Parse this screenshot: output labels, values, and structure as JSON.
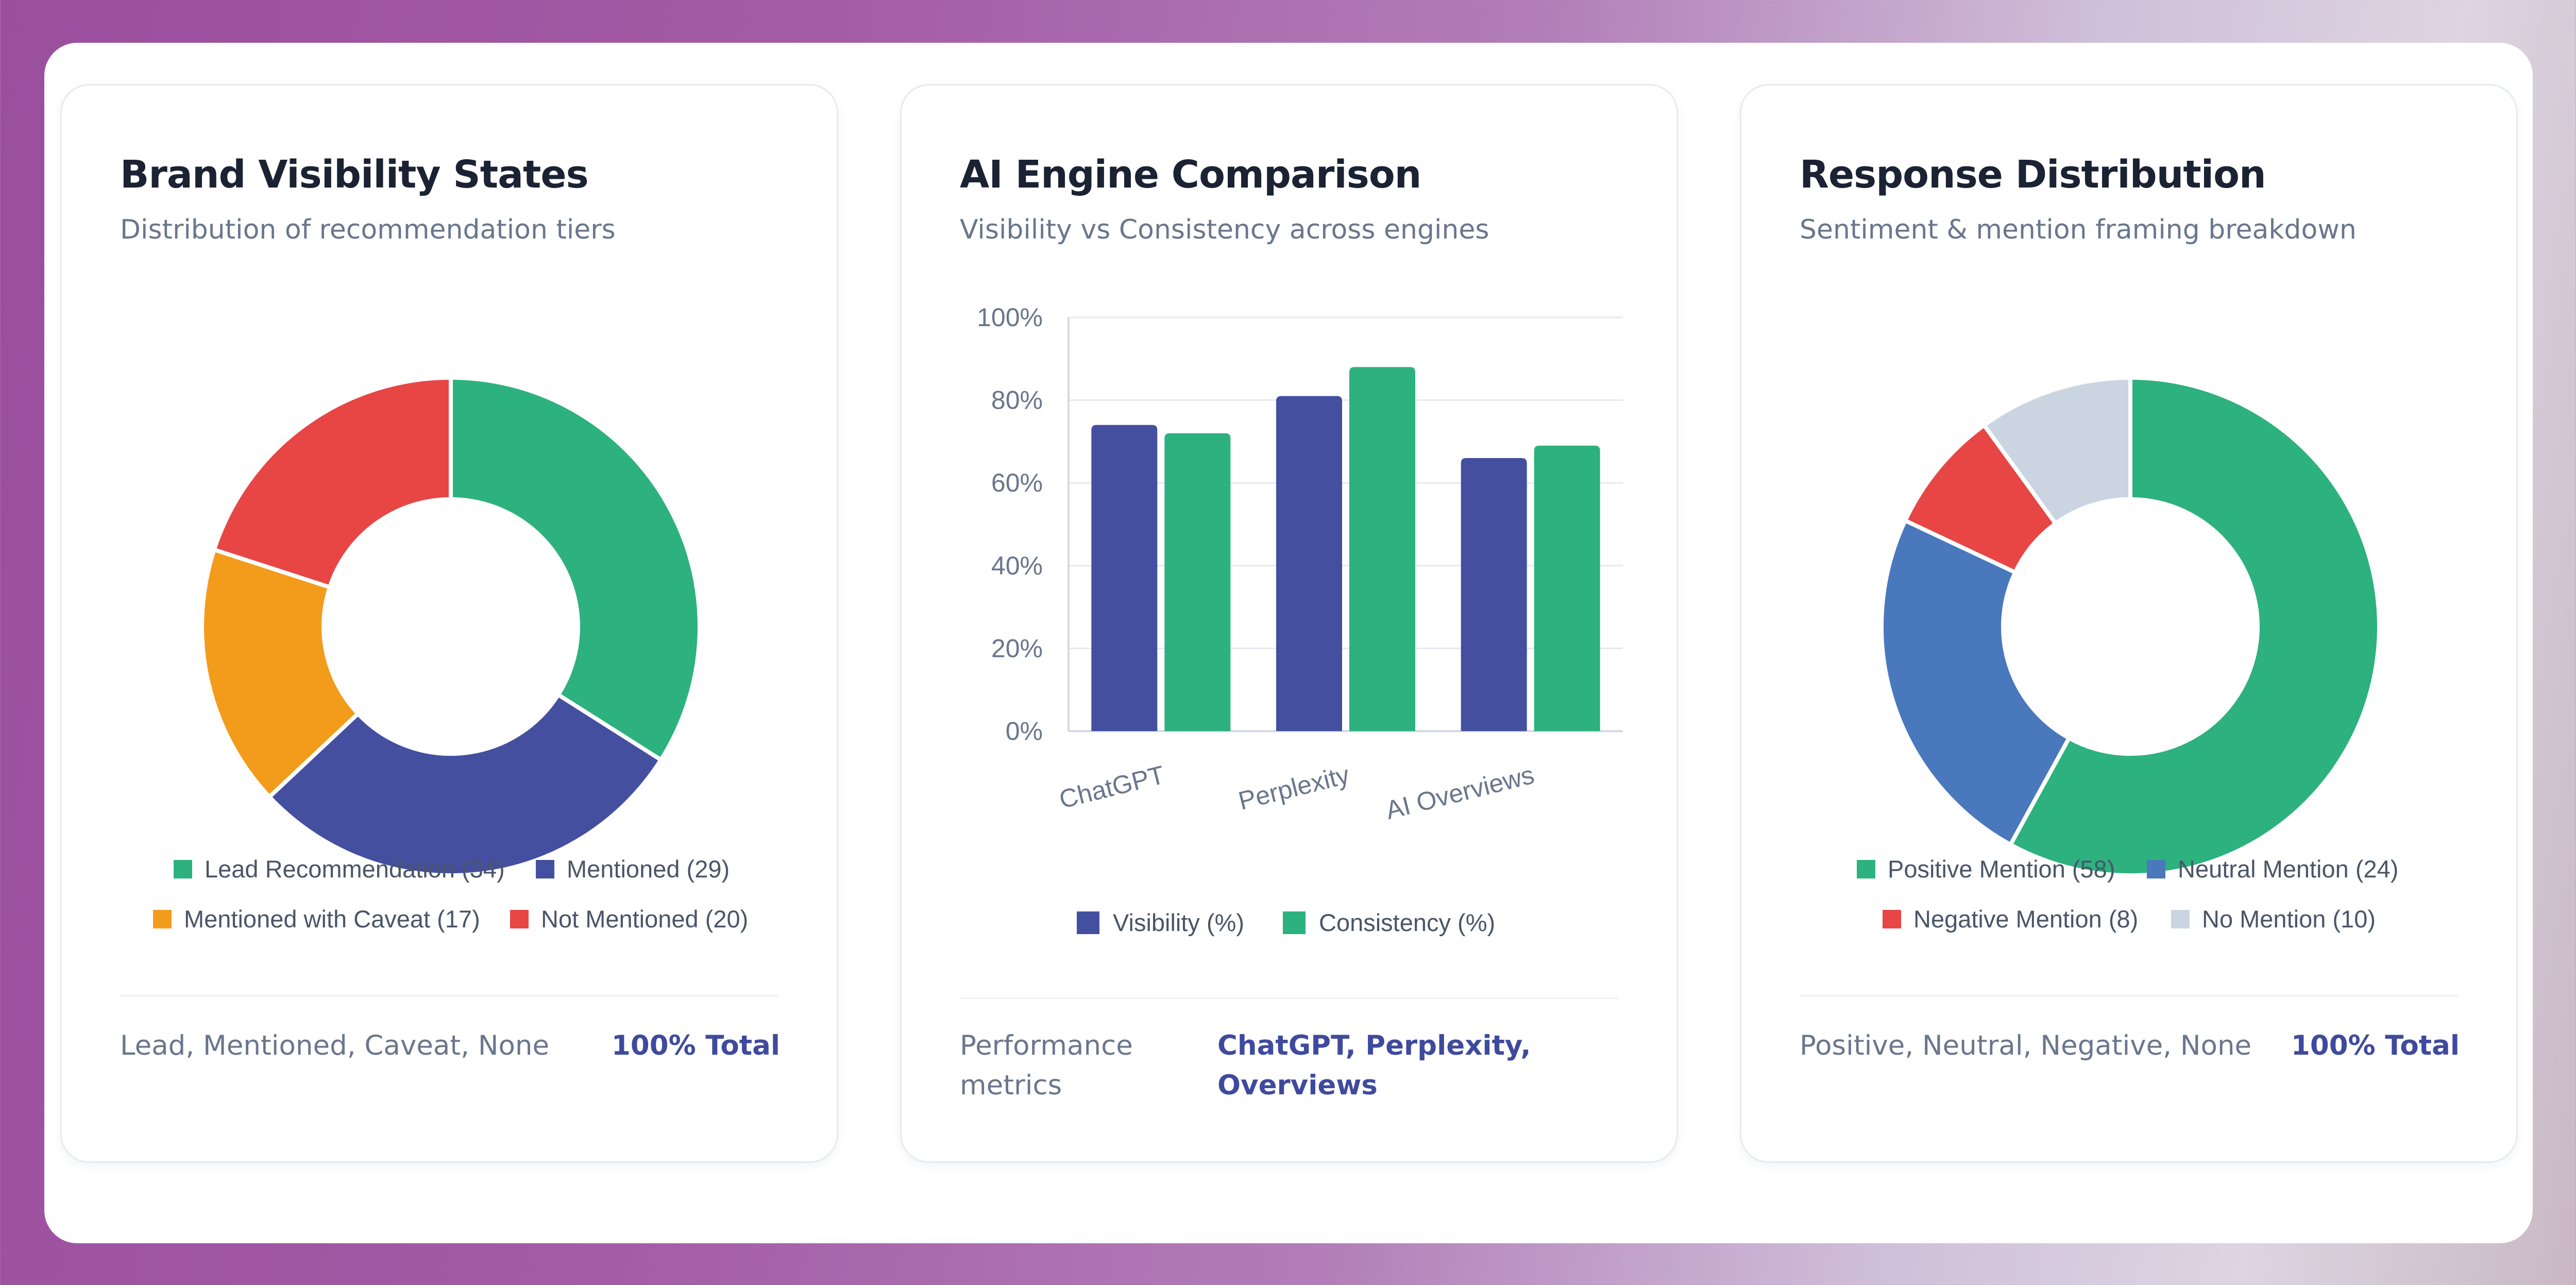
{
  "colors": {
    "green": "#2db17e",
    "indigo": "#454fa0",
    "orange": "#f39c1b",
    "red": "#e84545",
    "blue": "#4a78bc",
    "gray": "#cbd5e1"
  },
  "cards": [
    {
      "title": "Brand Visibility States",
      "subtitle": "Distribution of recommendation tiers",
      "footer_left": "Lead, Mentioned, Caveat, None",
      "footer_right": "100% Total"
    },
    {
      "title": "AI Engine Comparison",
      "subtitle": "Visibility vs Consistency across engines",
      "footer_left": "Performance metrics",
      "footer_right": "ChatGPT, Perplexity, Overviews"
    },
    {
      "title": "Response Distribution",
      "subtitle": "Sentiment & mention framing breakdown",
      "footer_left": "Positive, Neutral, Negative, None",
      "footer_right": "100% Total"
    }
  ],
  "chart_data": [
    {
      "type": "pie",
      "donut": true,
      "labels": [
        "Lead Recommendation",
        "Mentioned",
        "Mentioned with Caveat",
        "Not Mentioned"
      ],
      "legend_labels": [
        "Lead Recommendation (34)",
        "Mentioned (29)",
        "Mentioned with Caveat (17)",
        "Not Mentioned (20)"
      ],
      "values": [
        34,
        29,
        17,
        20
      ],
      "colors": [
        "#2db17e",
        "#454fa0",
        "#f39c1b",
        "#e84545"
      ],
      "legend": "bottom"
    },
    {
      "type": "bar",
      "categories": [
        "ChatGPT",
        "Perplexity",
        "AI Overviews"
      ],
      "series": [
        {
          "name": "Visibility (%)",
          "values": [
            74,
            81,
            66
          ],
          "color": "#454fa0"
        },
        {
          "name": "Consistency (%)",
          "values": [
            72,
            88,
            69
          ],
          "color": "#2db17e"
        }
      ],
      "ylim": [
        0,
        100
      ],
      "yticks": [
        "0%",
        "20%",
        "40%",
        "60%",
        "80%",
        "100%"
      ],
      "grid": true,
      "legend": "bottom"
    },
    {
      "type": "pie",
      "donut": true,
      "labels": [
        "Positive Mention",
        "Neutral Mention",
        "Negative Mention",
        "No Mention"
      ],
      "legend_labels": [
        "Positive Mention (58)",
        "Neutral Mention (24)",
        "Negative Mention (8)",
        "No Mention (10)"
      ],
      "values": [
        58,
        24,
        8,
        10
      ],
      "colors": [
        "#2db17e",
        "#4a78bc",
        "#e84545",
        "#cbd5e1"
      ],
      "legend": "bottom"
    }
  ]
}
